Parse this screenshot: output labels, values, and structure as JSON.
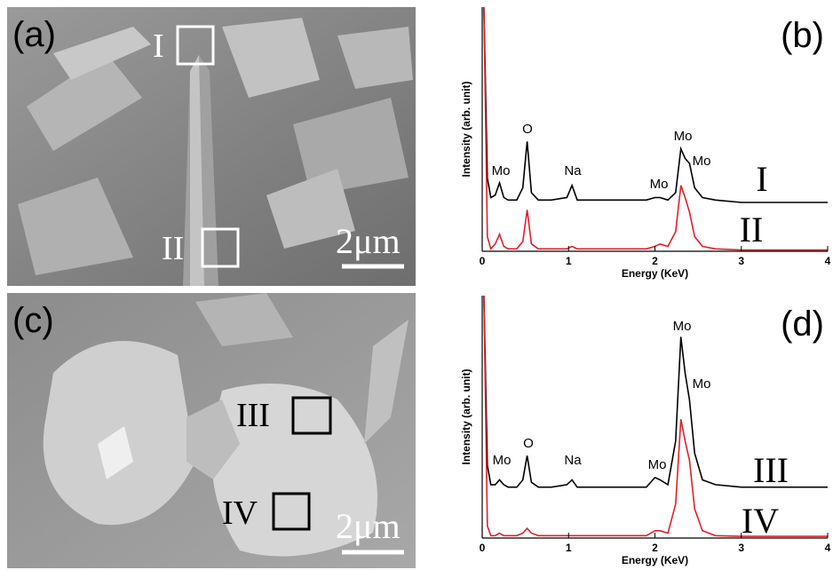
{
  "figure": {
    "panels": [
      {
        "label": "(a)",
        "regions": [
          "I",
          "II"
        ],
        "scale_bar": "2μm"
      },
      {
        "label": "(c)",
        "regions": [
          "III",
          "IV"
        ],
        "scale_bar": "2μm"
      }
    ]
  },
  "chart_data": [
    {
      "type": "line",
      "panel_label": "(b)",
      "x_label": "Energy (KeV)",
      "y_label": "Intensity (arb. unit)",
      "x": [
        0.02,
        0.06,
        0.1,
        0.15,
        0.2,
        0.25,
        0.3,
        0.4,
        0.47,
        0.52,
        0.57,
        0.65,
        0.8,
        0.98,
        1.04,
        1.1,
        1.3,
        1.6,
        1.9,
        2.0,
        2.06,
        2.15,
        2.24,
        2.3,
        2.35,
        2.4,
        2.46,
        2.55,
        2.7,
        3.0,
        3.5,
        4.0
      ],
      "xlim": [
        0,
        4
      ],
      "xticks": [
        0,
        1,
        2,
        3,
        4
      ],
      "ylim": [
        0,
        100
      ],
      "series": [
        {
          "name": "I",
          "color": "#000000",
          "values": [
            100,
            30,
            22,
            23,
            28,
            22,
            21,
            21,
            26,
            45,
            24,
            21,
            21,
            22,
            27,
            21,
            21,
            21,
            21,
            22,
            22,
            21,
            24,
            42,
            38,
            36,
            26,
            22,
            21,
            20,
            20,
            20
          ]
        },
        {
          "name": "II",
          "color": "#e0202a",
          "values": [
            100,
            6,
            1,
            3,
            7,
            2,
            1,
            1,
            4,
            17,
            3,
            1,
            1,
            1,
            2,
            1,
            1,
            1,
            1,
            2,
            3,
            2,
            8,
            27,
            22,
            16,
            6,
            2,
            1,
            0.5,
            0.5,
            0.5
          ]
        }
      ],
      "annotations": [
        "Mo",
        "O",
        "Na",
        "Mo",
        "Mo",
        "Mo"
      ]
    },
    {
      "type": "line",
      "panel_label": "(d)",
      "x_label": "Energy (KeV)",
      "y_label": "Intensity (arb. unit)",
      "x": [
        0.02,
        0.06,
        0.1,
        0.15,
        0.2,
        0.25,
        0.3,
        0.4,
        0.47,
        0.52,
        0.57,
        0.65,
        0.8,
        0.98,
        1.04,
        1.1,
        1.3,
        1.6,
        1.9,
        2.0,
        2.06,
        2.15,
        2.24,
        2.3,
        2.35,
        2.4,
        2.46,
        2.55,
        2.7,
        3.0,
        3.5,
        4.0
      ],
      "xlim": [
        0,
        4
      ],
      "xticks": [
        0,
        1,
        2,
        3,
        4
      ],
      "ylim": [
        0,
        100
      ],
      "series": [
        {
          "name": "III",
          "color": "#000000",
          "values": [
            100,
            30,
            22,
            22,
            24,
            22,
            21,
            21,
            24,
            34,
            23,
            21,
            21,
            22,
            24,
            21,
            21,
            21,
            21,
            25,
            24,
            22,
            40,
            83,
            68,
            57,
            35,
            24,
            22,
            21,
            21,
            21
          ]
        },
        {
          "name": "IV",
          "color": "#e0202a",
          "values": [
            100,
            5,
            1,
            1,
            2,
            1,
            1,
            1,
            2,
            4,
            2,
            1,
            1,
            1,
            1,
            1,
            1,
            1,
            1,
            3,
            3,
            2,
            14,
            49,
            40,
            32,
            12,
            3,
            1,
            0.7,
            0.7,
            0.7
          ]
        }
      ],
      "annotations": [
        "Mo",
        "O",
        "Na",
        "Mo",
        "Mo",
        "Mo"
      ]
    }
  ]
}
